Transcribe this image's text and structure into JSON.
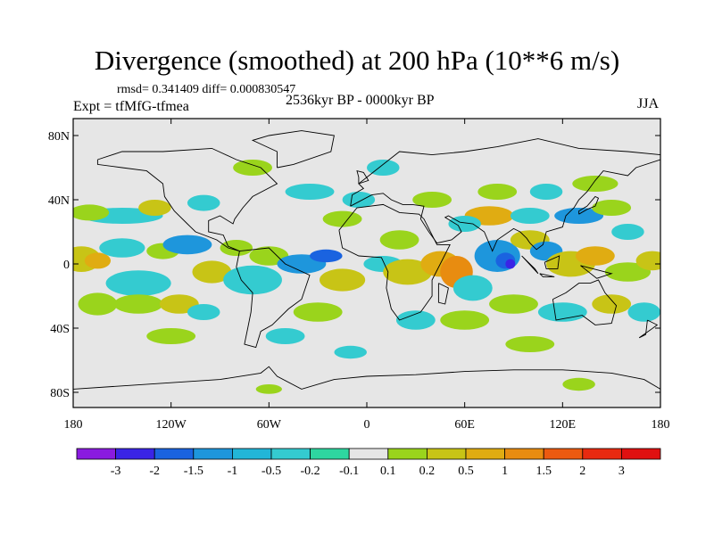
{
  "title": "Divergence (smoothed) at 200 hPa (10**6 m/s)",
  "stats": "rmsd= 0.341409 diff= 0.000830547",
  "experiment": "Expt = tfMfG-tfmea",
  "period": "2536kyr BP - 0000kyr BP",
  "season": "JJA",
  "axes": {
    "lon_ticks": [
      "180",
      "120W",
      "60W",
      "0",
      "60E",
      "120E",
      "180"
    ],
    "lat_ticks": [
      "80N",
      "40N",
      "0",
      "40S",
      "80S"
    ]
  },
  "colorbar": {
    "labels": [
      "-3",
      "-2",
      "-1.5",
      "-1",
      "-0.5",
      "-0.2",
      "-0.1",
      "0.1",
      "0.2",
      "0.5",
      "1",
      "1.5",
      "2",
      "3"
    ],
    "colors": [
      "#8a1be0",
      "#3a24e6",
      "#1a63e0",
      "#1e96dc",
      "#22b6d8",
      "#34cbd0",
      "#2ed6a0",
      "#e6e6e6",
      "#9ad41c",
      "#c8c416",
      "#e0ac12",
      "#e88c10",
      "#ec5a10",
      "#e82a10",
      "#e01010"
    ]
  },
  "map_colors": {
    "background": "#e6e6e6",
    "neg_weak": "#34cbd0",
    "neg_mid": "#1e96dc",
    "neg_strong": "#1a63e0",
    "neg_max": "#3a24e6",
    "pos_weak": "#9ad41c",
    "pos_mid": "#c8c416",
    "pos_strong": "#e0ac12",
    "pos_max": "#e88c10",
    "coast": "#000000"
  }
}
